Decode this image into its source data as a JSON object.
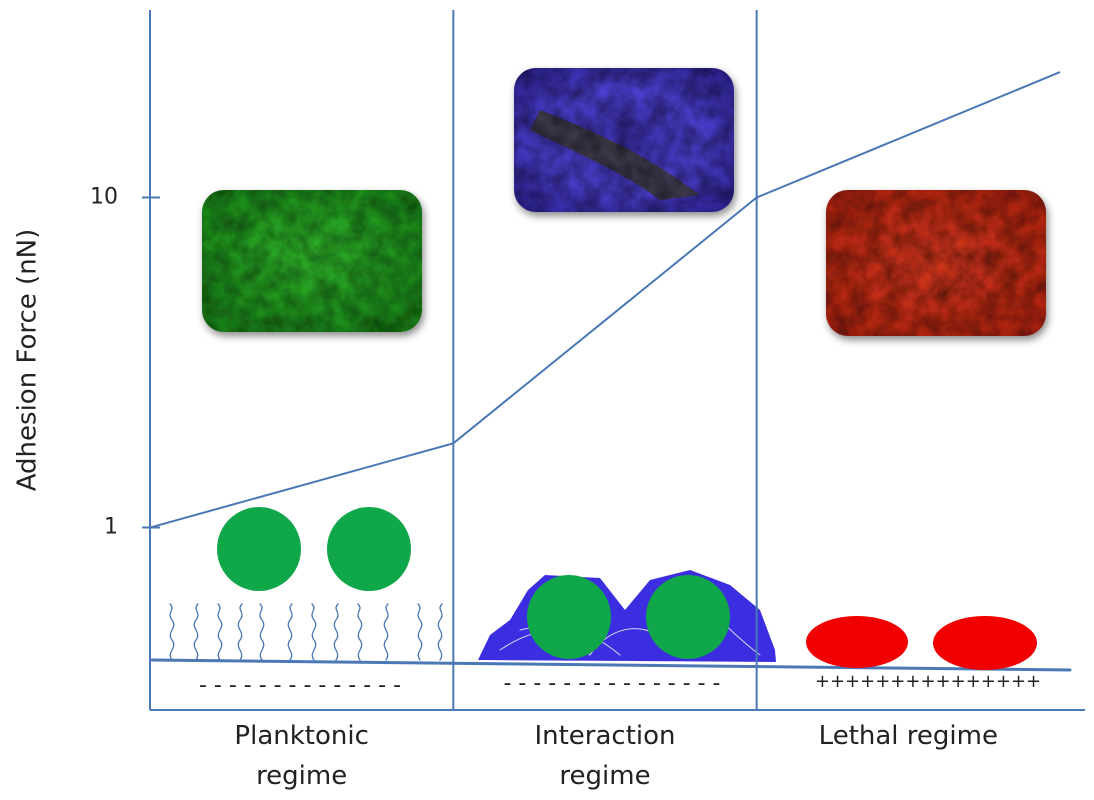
{
  "chart_data": {
    "type": "line",
    "y_label": "Adhesion Force (nN)",
    "categories": [
      "Planktonic regime",
      "Interaction regime",
      "Lethal regime"
    ],
    "x": [
      0,
      1,
      2,
      3
    ],
    "xlim": [
      0,
      3
    ],
    "series": [
      {
        "name": null,
        "color": "#4a78b5",
        "values": [
          1,
          1.8,
          10,
          24
        ]
      }
    ],
    "log_y": true,
    "ylim": [
      0.28,
      37
    ],
    "yticks": [
      1,
      10
    ],
    "annotations": [
      "- - - - - - - - - - - - - -",
      "- - - - - - - - - - - - - - -",
      "+++++++++++++++"
    ]
  }
}
